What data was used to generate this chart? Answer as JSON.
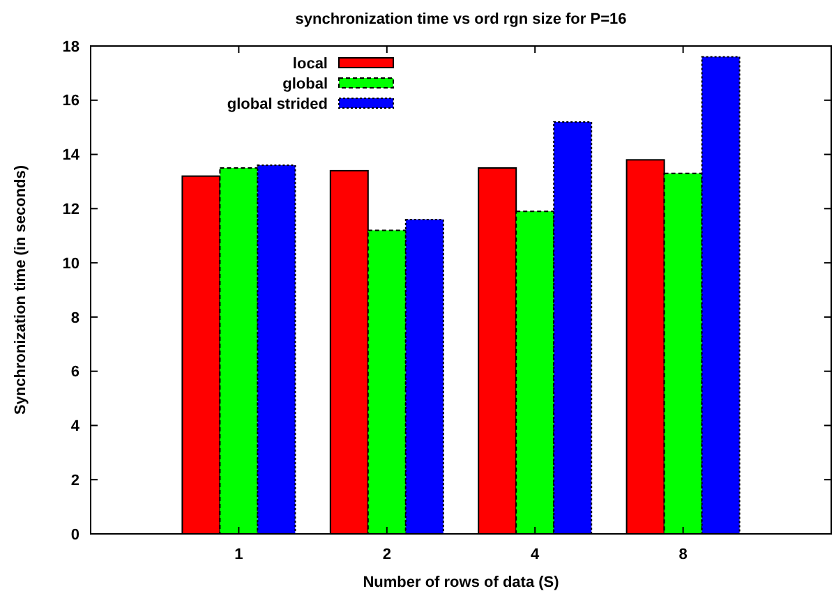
{
  "chart_data": {
    "type": "bar",
    "title": "synchronization time vs ord rgn size for P=16",
    "xlabel": "Number of rows of data (S)",
    "ylabel": "Synchronization time (in seconds)",
    "categories": [
      "1",
      "2",
      "4",
      "8"
    ],
    "series": [
      {
        "name": "local",
        "color": "#ff0000",
        "values": [
          13.2,
          13.4,
          13.5,
          13.8
        ],
        "line_style": "solid"
      },
      {
        "name": "global",
        "color": "#00ff00",
        "values": [
          13.5,
          11.2,
          11.9,
          13.3
        ],
        "line_style": "dashed"
      },
      {
        "name": "global strided",
        "color": "#0000ff",
        "values": [
          13.6,
          11.6,
          15.2,
          17.6
        ],
        "line_style": "dotted"
      }
    ],
    "ylim": [
      0,
      18
    ],
    "yticks": [
      0,
      2,
      4,
      6,
      8,
      10,
      12,
      14,
      16,
      18
    ],
    "grid": false,
    "legend": "top left"
  }
}
